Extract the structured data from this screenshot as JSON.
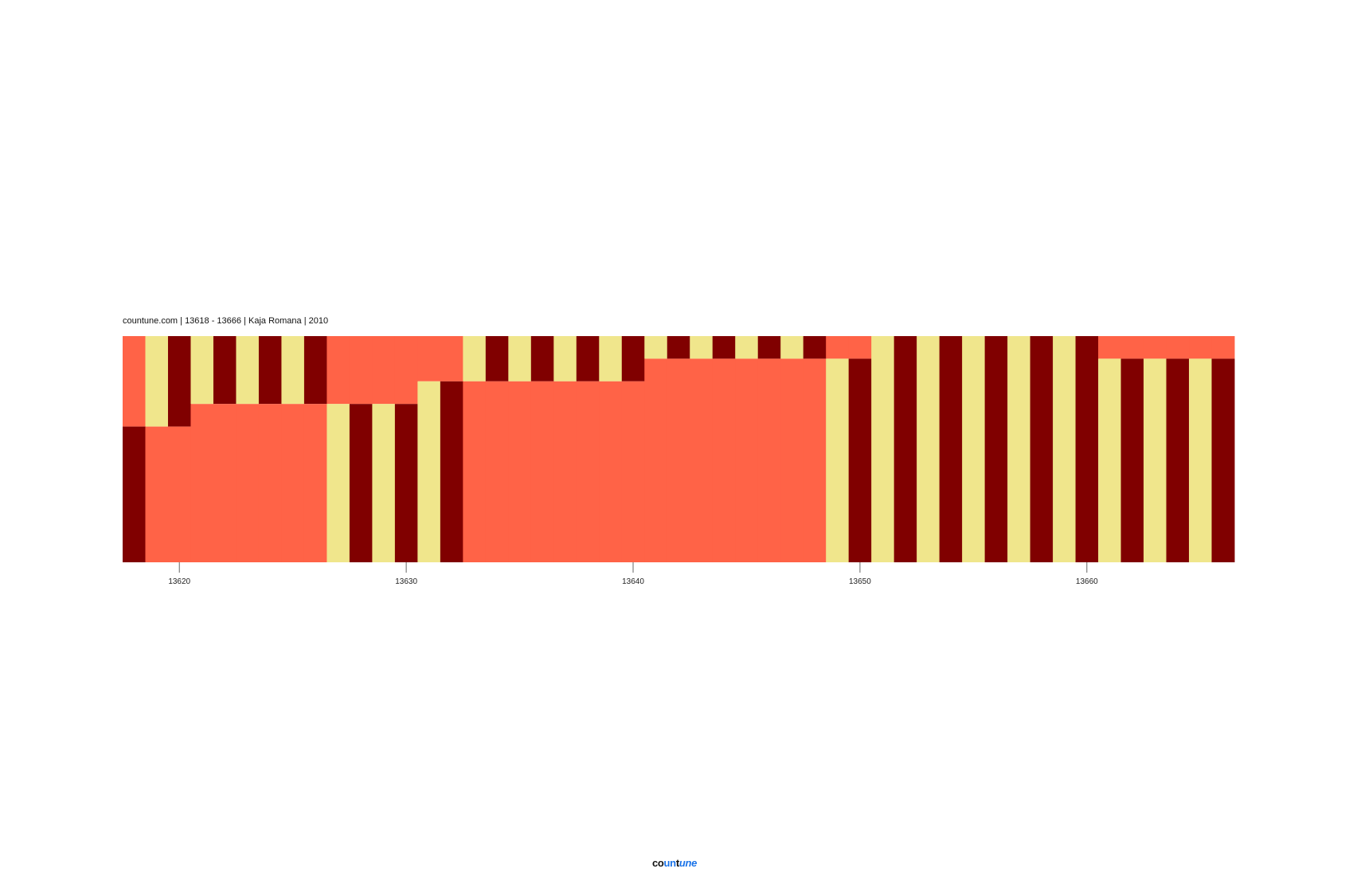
{
  "chart_data": {
    "type": "bar",
    "stacked": true,
    "title": "countune.com | 13618 - 13666 | Kaja Romana | 2010",
    "x_ticks": [
      13620,
      13630,
      13640,
      13650,
      13660
    ],
    "x_range": [
      13618,
      13666
    ],
    "y_range": [
      0,
      1
    ],
    "grid": false,
    "colors": {
      "coral": "#FF6347",
      "khaki": "#F0E68C",
      "maroon": "#800000"
    },
    "columns": [
      {
        "x": 13618,
        "top": "coral",
        "top_fraction": 0.4,
        "bottom": "maroon"
      },
      {
        "x": 13619,
        "top": "khaki",
        "top_fraction": 0.4,
        "bottom": "coral"
      },
      {
        "x": 13620,
        "top": "maroon",
        "top_fraction": 0.4,
        "bottom": "coral"
      },
      {
        "x": 13621,
        "top": "khaki",
        "top_fraction": 0.3,
        "bottom": "coral"
      },
      {
        "x": 13622,
        "top": "maroon",
        "top_fraction": 0.3,
        "bottom": "coral"
      },
      {
        "x": 13623,
        "top": "khaki",
        "top_fraction": 0.3,
        "bottom": "coral"
      },
      {
        "x": 13624,
        "top": "maroon",
        "top_fraction": 0.3,
        "bottom": "coral"
      },
      {
        "x": 13625,
        "top": "khaki",
        "top_fraction": 0.3,
        "bottom": "coral"
      },
      {
        "x": 13626,
        "top": "maroon",
        "top_fraction": 0.3,
        "bottom": "coral"
      },
      {
        "x": 13627,
        "top": "coral",
        "top_fraction": 0.3,
        "bottom": "khaki"
      },
      {
        "x": 13628,
        "top": "coral",
        "top_fraction": 0.3,
        "bottom": "maroon"
      },
      {
        "x": 13629,
        "top": "coral",
        "top_fraction": 0.3,
        "bottom": "khaki"
      },
      {
        "x": 13630,
        "top": "coral",
        "top_fraction": 0.3,
        "bottom": "maroon"
      },
      {
        "x": 13631,
        "top": "coral",
        "top_fraction": 0.2,
        "bottom": "khaki"
      },
      {
        "x": 13632,
        "top": "coral",
        "top_fraction": 0.2,
        "bottom": "maroon"
      },
      {
        "x": 13633,
        "top": "khaki",
        "top_fraction": 0.2,
        "bottom": "coral"
      },
      {
        "x": 13634,
        "top": "maroon",
        "top_fraction": 0.2,
        "bottom": "coral"
      },
      {
        "x": 13635,
        "top": "khaki",
        "top_fraction": 0.2,
        "bottom": "coral"
      },
      {
        "x": 13636,
        "top": "maroon",
        "top_fraction": 0.2,
        "bottom": "coral"
      },
      {
        "x": 13637,
        "top": "khaki",
        "top_fraction": 0.2,
        "bottom": "coral"
      },
      {
        "x": 13638,
        "top": "maroon",
        "top_fraction": 0.2,
        "bottom": "coral"
      },
      {
        "x": 13639,
        "top": "khaki",
        "top_fraction": 0.2,
        "bottom": "coral"
      },
      {
        "x": 13640,
        "top": "maroon",
        "top_fraction": 0.2,
        "bottom": "coral"
      },
      {
        "x": 13641,
        "top": "khaki",
        "top_fraction": 0.1,
        "bottom": "coral"
      },
      {
        "x": 13642,
        "top": "maroon",
        "top_fraction": 0.1,
        "bottom": "coral"
      },
      {
        "x": 13643,
        "top": "khaki",
        "top_fraction": 0.1,
        "bottom": "coral"
      },
      {
        "x": 13644,
        "top": "maroon",
        "top_fraction": 0.1,
        "bottom": "coral"
      },
      {
        "x": 13645,
        "top": "khaki",
        "top_fraction": 0.1,
        "bottom": "coral"
      },
      {
        "x": 13646,
        "top": "maroon",
        "top_fraction": 0.1,
        "bottom": "coral"
      },
      {
        "x": 13647,
        "top": "khaki",
        "top_fraction": 0.1,
        "bottom": "coral"
      },
      {
        "x": 13648,
        "top": "maroon",
        "top_fraction": 0.1,
        "bottom": "coral"
      },
      {
        "x": 13649,
        "top": "coral",
        "top_fraction": 0.1,
        "bottom": "khaki"
      },
      {
        "x": 13650,
        "top": "coral",
        "top_fraction": 0.1,
        "bottom": "maroon"
      },
      {
        "x": 13651,
        "top": "khaki",
        "top_fraction": 0,
        "bottom": "khaki"
      },
      {
        "x": 13652,
        "top": "maroon",
        "top_fraction": 0,
        "bottom": "maroon"
      },
      {
        "x": 13653,
        "top": "khaki",
        "top_fraction": 0,
        "bottom": "khaki"
      },
      {
        "x": 13654,
        "top": "maroon",
        "top_fraction": 0,
        "bottom": "maroon"
      },
      {
        "x": 13655,
        "top": "khaki",
        "top_fraction": 0,
        "bottom": "khaki"
      },
      {
        "x": 13656,
        "top": "maroon",
        "top_fraction": 0,
        "bottom": "maroon"
      },
      {
        "x": 13657,
        "top": "khaki",
        "top_fraction": 0,
        "bottom": "khaki"
      },
      {
        "x": 13658,
        "top": "maroon",
        "top_fraction": 0,
        "bottom": "maroon"
      },
      {
        "x": 13659,
        "top": "khaki",
        "top_fraction": 0,
        "bottom": "khaki"
      },
      {
        "x": 13660,
        "top": "maroon",
        "top_fraction": 0,
        "bottom": "maroon"
      },
      {
        "x": 13661,
        "top": "coral",
        "top_fraction": 0.1,
        "bottom": "khaki"
      },
      {
        "x": 13662,
        "top": "coral",
        "top_fraction": 0.1,
        "bottom": "maroon"
      },
      {
        "x": 13663,
        "top": "coral",
        "top_fraction": 0.1,
        "bottom": "khaki"
      },
      {
        "x": 13664,
        "top": "coral",
        "top_fraction": 0.1,
        "bottom": "maroon"
      },
      {
        "x": 13665,
        "top": "coral",
        "top_fraction": 0.1,
        "bottom": "khaki"
      },
      {
        "x": 13666,
        "top": "coral",
        "top_fraction": 0.1,
        "bottom": "maroon"
      }
    ]
  },
  "logo": {
    "text": "countune",
    "parts": [
      "co",
      "un",
      "t",
      "une"
    ]
  }
}
